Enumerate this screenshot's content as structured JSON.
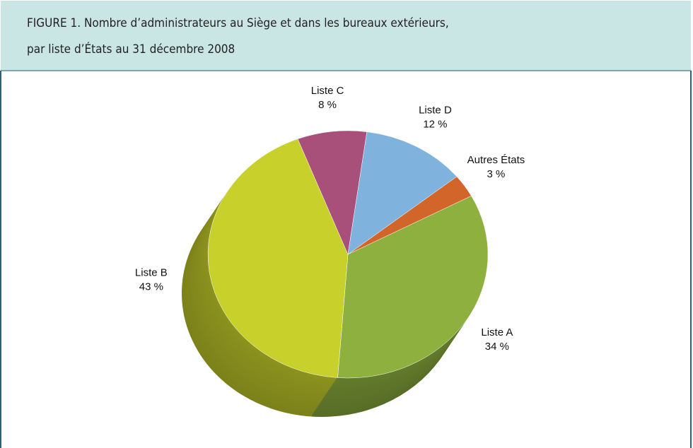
{
  "chart_data": {
    "type": "pie",
    "title": [
      "FIGURE 1. Nombre d’administrateurs au Siège et dans les bureaux extérieurs,",
      "par liste d’États au 31 décembre 2008"
    ],
    "categories": [
      "Autres États",
      "Liste A",
      "Liste B",
      "Liste C",
      "Liste D"
    ],
    "values": [
      3,
      34,
      43,
      8,
      12
    ],
    "value_labels": [
      "3 %",
      "34 %",
      "43 %",
      "8 %",
      "12 %"
    ],
    "colors": [
      "#d2652a",
      "#8db03e",
      "#c8d12b",
      "#a84f7a",
      "#7fb3de"
    ]
  }
}
